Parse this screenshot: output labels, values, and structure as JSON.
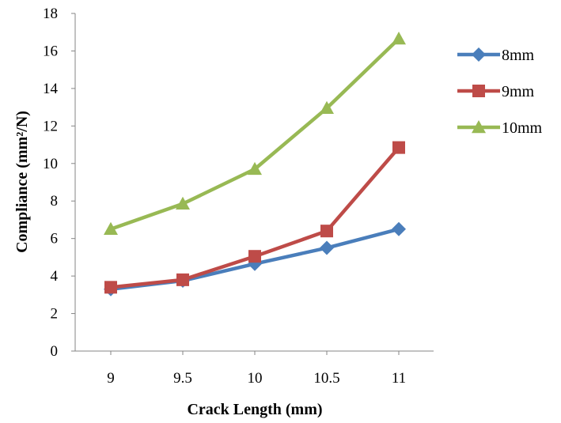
{
  "chart_data": {
    "type": "line",
    "title": "",
    "xlabel": "Crack Length (mm)",
    "ylabel": "Compliance (mm²/N)",
    "categories": [
      "9",
      "9.5",
      "10",
      "10.5",
      "11"
    ],
    "ylim": [
      0,
      18
    ],
    "yticks": [
      "0",
      "2",
      "4",
      "6",
      "8",
      "10",
      "12",
      "14",
      "16",
      "18"
    ],
    "grid": false,
    "legend_position": "right",
    "series": [
      {
        "name": "8mm",
        "marker": "diamond",
        "color": "#4A7EBB",
        "values": [
          3.3,
          3.75,
          4.65,
          5.5,
          6.5
        ]
      },
      {
        "name": "9mm",
        "marker": "square",
        "color": "#BE4B48",
        "values": [
          3.4,
          3.8,
          5.05,
          6.4,
          10.85
        ]
      },
      {
        "name": "10mm",
        "marker": "triangle",
        "color": "#98B954",
        "values": [
          6.5,
          7.85,
          9.7,
          12.95,
          16.65
        ]
      }
    ]
  }
}
